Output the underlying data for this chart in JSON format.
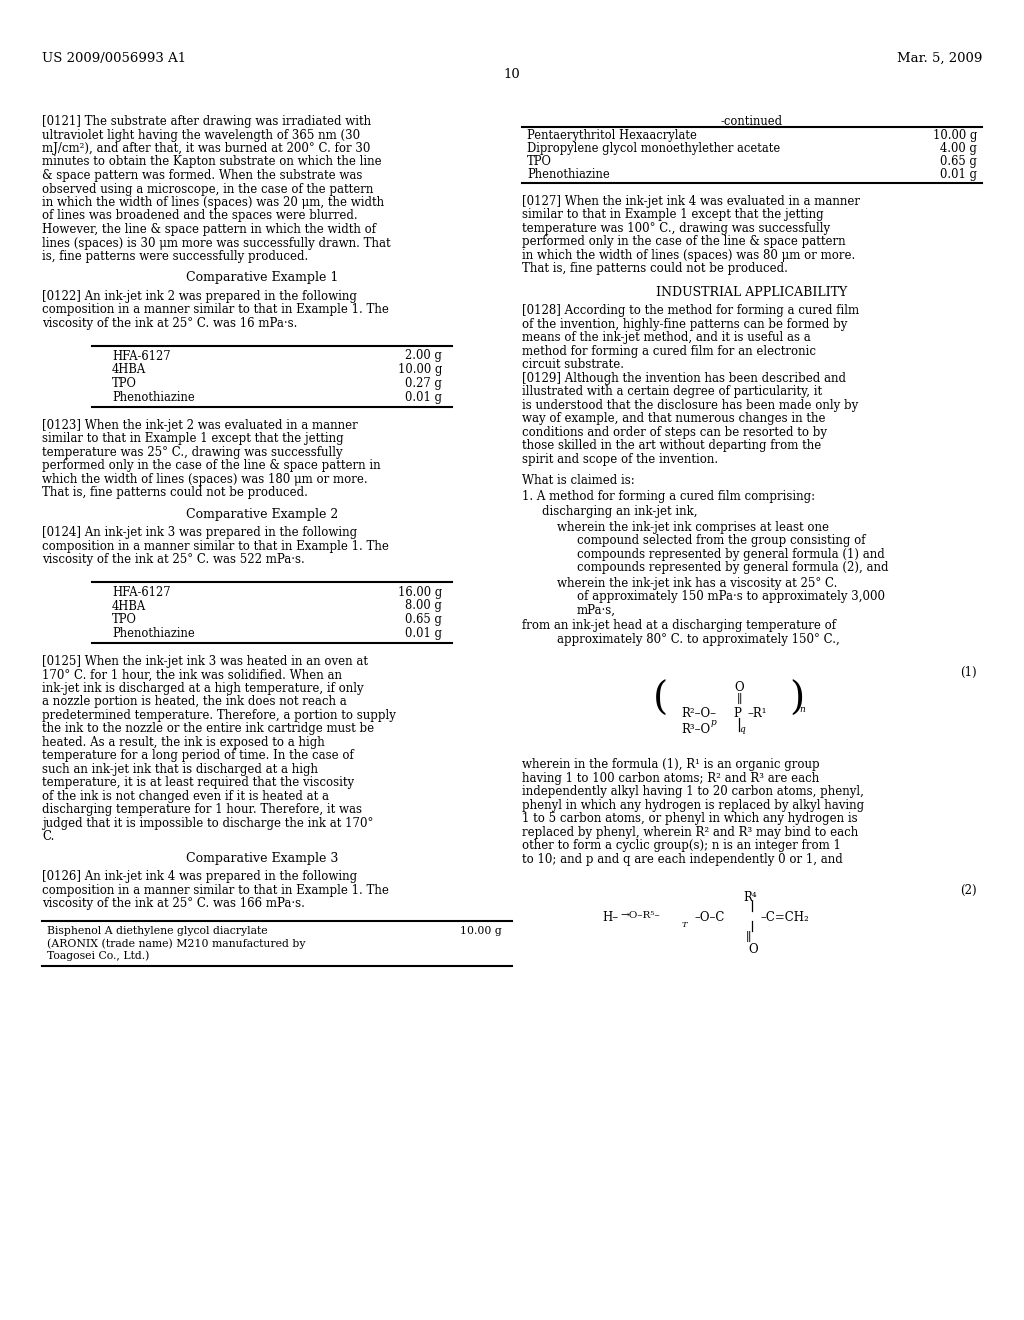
{
  "background_color": "#ffffff",
  "header_left": "US 2009/0056993 A1",
  "header_right": "Mar. 5, 2009",
  "page_number": "10",
  "continued_table": {
    "title": "-continued",
    "rows": [
      [
        "Pentaerythritol Hexaacrylate",
        "10.00 g"
      ],
      [
        "Dipropylene glycol monoethylether acetate",
        "4.00 g"
      ],
      [
        "TPO",
        "0.65 g"
      ],
      [
        "Phenothiazine",
        "0.01 g"
      ]
    ]
  },
  "table1": {
    "rows": [
      [
        "HFA-6127",
        "2.00 g"
      ],
      [
        "4HBA",
        "10.00 g"
      ],
      [
        "TPO",
        "0.27 g"
      ],
      [
        "Phenothiazine",
        "0.01 g"
      ]
    ]
  },
  "table2": {
    "rows": [
      [
        "HFA-6127",
        "16.00 g"
      ],
      [
        "4HBA",
        "8.00 g"
      ],
      [
        "TPO",
        "0.65 g"
      ],
      [
        "Phenothiazine",
        "0.01 g"
      ]
    ]
  },
  "para0121": "[0121]  The substrate after drawing was irradiated with ultraviolet light having the wavelength of 365 nm (30 mJ/cm²), and after that, it was burned at 200° C. for 30 minutes to obtain the Kapton substrate on which the line & space pattern was formed. When the substrate was observed using a microscope, in the case of the pattern in which the width of lines (spaces) was 20 μm, the width of lines was broadened and the spaces were blurred. However, the line & space pattern in which the width of lines (spaces) is 30 μm more was successfully drawn. That is, fine patterns were successfully produced.",
  "para0122": "[0122]  An ink-jet ink 2 was prepared in the following composition in a manner similar to that in Example 1. The viscosity of the ink at 25° C. was 16 mPa·s.",
  "para0123": "[0123]  When the ink-jet 2 was evaluated in a manner similar to that in Example 1 except that the jetting temperature was 25° C., drawing was successfully performed only in the case of the line & space pattern in which the width of lines (spaces) was 180 μm or more. That is, fine patterns could not be produced.",
  "para0124": "[0124]  An ink-jet ink 3 was prepared in the following composition in a manner similar to that in Example 1. The viscosity of the ink at 25° C. was 522 mPa·s.",
  "para0125": "[0125]  When the ink-jet ink 3 was heated in an oven at 170° C. for 1 hour, the ink was solidified. When an ink-jet ink is discharged at a high temperature, if only a nozzle portion is heated, the ink does not reach a predetermined temperature. Therefore, a portion to supply the ink to the nozzle or the entire ink cartridge must be heated. As a result, the ink is exposed to a high temperature for a long period of time. In the case of such an ink-jet ink that is discharged at a high temperature, it is at least required that the viscosity of the ink is not changed even if it is heated at a discharging temperature for 1 hour. Therefore, it was judged that it is impossible to discharge the ink at 170° C.",
  "para0126": "[0126]  An ink-jet ink 4 was prepared in the following composition in a manner similar to that in Example 1. The viscosity of the ink at 25° C. was 166 mPa·s.",
  "para0127": "[0127]  When the ink-jet ink 4 was evaluated in a manner similar to that in Example 1 except that the jetting temperature was 100° C., drawing was successfully performed only in the case of the line & space pattern in which the width of lines (spaces) was 80 μm or more. That is, fine patterns could not be produced.",
  "para0128": "[0128]  According to the method for forming a cured film of the invention, highly-fine patterns can be formed by means of the ink-jet method, and it is useful as a method for forming a cured film for an electronic circuit substrate.",
  "para0129": "[0129]  Although the invention has been described and illustrated with a certain degree of particularity, it is understood that the disclosure has been made only by way of example, and that numerous changes in the conditions and order of steps can be resorted to by those skilled in the art without departing from the spirit and scope of the invention.",
  "claim1_a": "What is claimed is:",
  "claim1_b": "1. A method for forming a cured film comprising:",
  "claim1_c": "discharging an ink-jet ink,",
  "claim1_d": "wherein the ink-jet ink comprises at least one compound selected from the group consisting of compounds represented by general formula (1) and compounds represented by general formula (2), and",
  "claim1_e": "wherein the ink-jet ink has a viscosity at 25° C. of approximately 150 mPa·s to approximately 3,000 mPa·s,",
  "claim1_f": "from an ink-jet head at a discharging temperature of approximately 80° C. to approximately 150° C.,",
  "para_f1": "wherein in the formula (1), R¹ is an organic group having 1 to 100 carbon atoms; R² and R³ are each independently alkyl having 1 to 20 carbon atoms, phenyl, phenyl in which any hydrogen is replaced by alkyl having 1 to 5 carbon atoms, or phenyl in which any hydrogen is replaced by phenyl, wherein R² and R³ may bind to each other to form a cyclic group(s); n is an integer from 1 to 10; and p and q are each independently 0 or 1, and",
  "bisphenol_row": [
    "Bisphenol A diethylene glycol diacrylate\n(ARONIX (trade name) M210 manufactured by\nToagosei Co., Ltd.)",
    "10.00 g"
  ],
  "comp_ex1": "Comparative Example 1",
  "comp_ex2": "Comparative Example 2",
  "comp_ex3": "Comparative Example 3",
  "ind_app": "INDUSTRIAL APPLICABILITY"
}
